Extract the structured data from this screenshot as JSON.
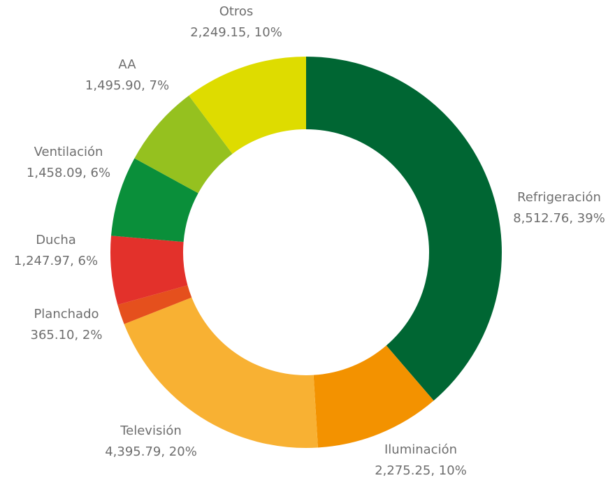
{
  "chart_data": {
    "type": "donut",
    "categories": [
      "Refrigeración",
      "Iluminación",
      "Televisión",
      "Planchado",
      "Ducha",
      "Ventilación",
      "AA",
      "Otros"
    ],
    "values": [
      8512.76,
      2275.25,
      4395.79,
      365.1,
      1247.97,
      1458.09,
      1495.9,
      2249.15
    ],
    "value_labels": [
      "8,512.76, 39%",
      "2,275.25, 10%",
      "4,395.79, 20%",
      "365.10, 2%",
      "1,247.97, 6%",
      "1,458.09, 6%",
      "1,495.90, 7%",
      "2,249.15, 10%"
    ],
    "colors": [
      "#006633",
      "#f39200",
      "#f8b133",
      "#e5501d",
      "#e3312b",
      "#0a8f3a",
      "#95c11f",
      "#dedc00"
    ]
  }
}
